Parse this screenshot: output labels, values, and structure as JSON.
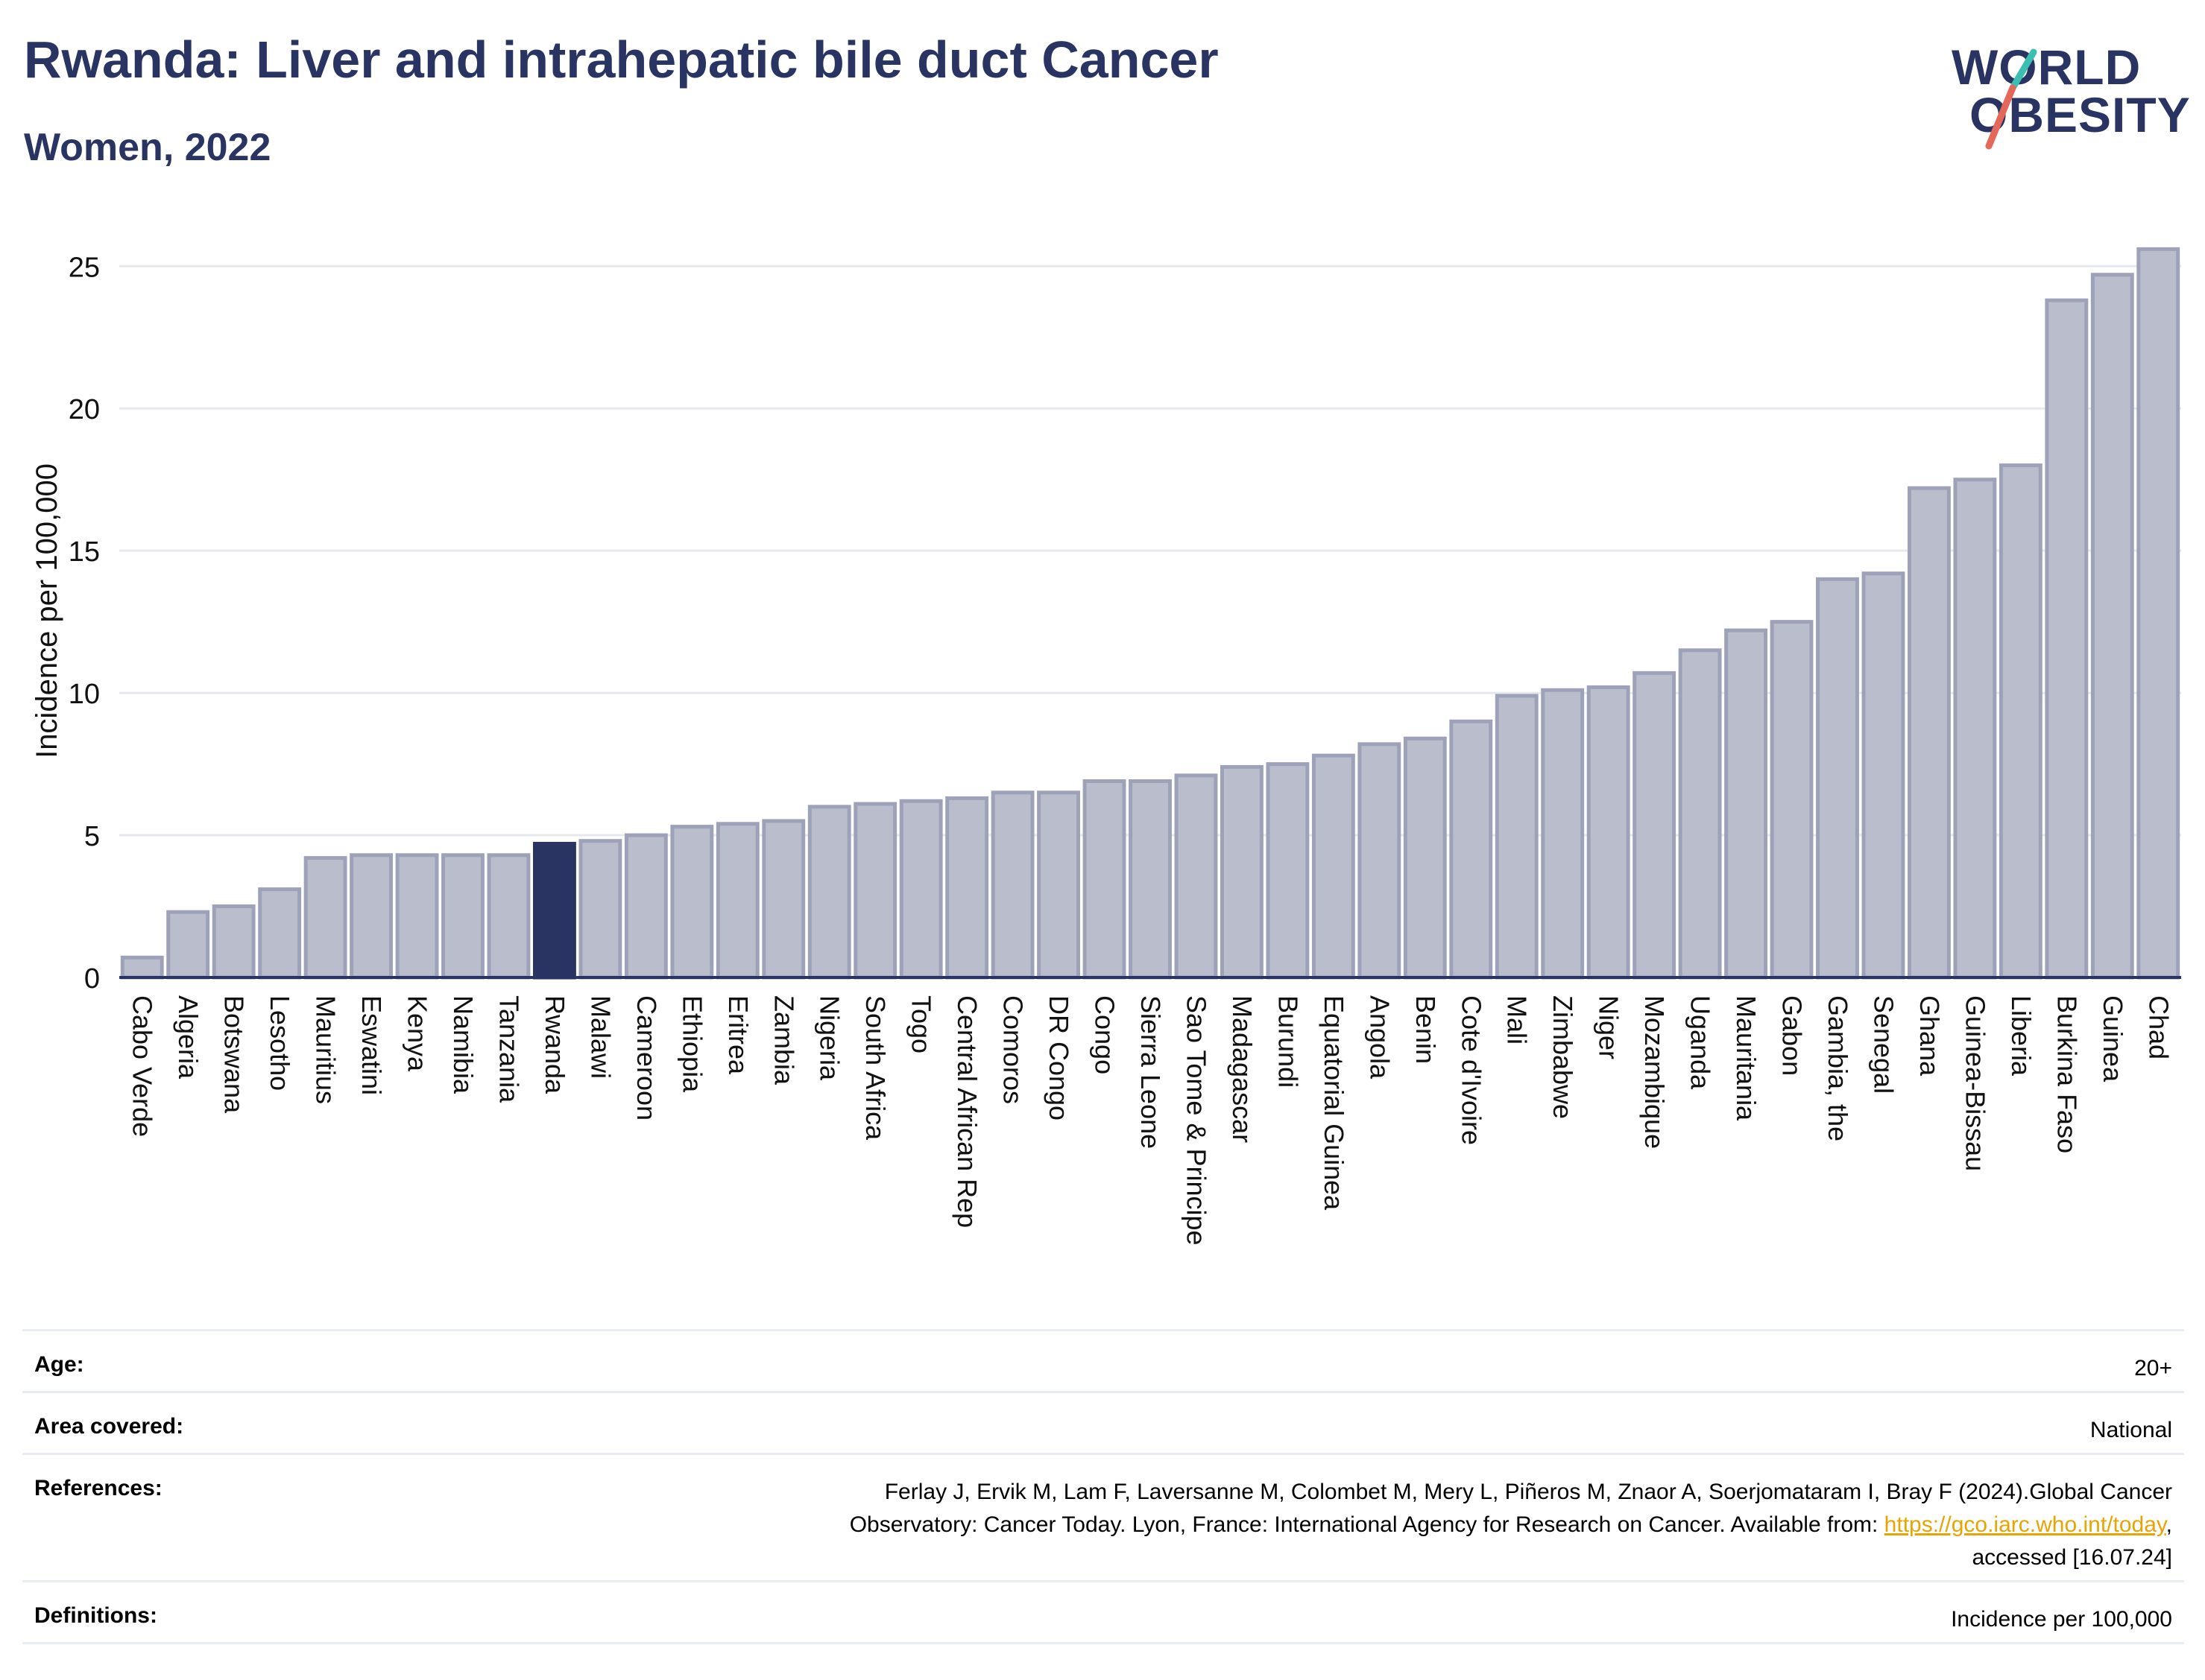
{
  "header": {
    "title": "Rwanda: Liver and intrahepatic bile duct Cancer",
    "subtitle": "Women, 2022"
  },
  "logo": {
    "line1": "WORLD",
    "line2": "OBESITY",
    "accent_colors": [
      "#3bbfb0",
      "#e5675a"
    ]
  },
  "colors": {
    "bar": "#b9bdcc",
    "bar_border": "#9da2b9",
    "highlight": "#2a3462",
    "title": "#2a3462",
    "link": "#e8a400"
  },
  "chart_data": {
    "type": "bar",
    "ylabel": "Incidence per 100,000",
    "ylim": [
      0,
      26.5
    ],
    "yticks": [
      0,
      5,
      10,
      15,
      20,
      25
    ],
    "grid": true,
    "highlight": "Rwanda",
    "categories": [
      "Cabo Verde",
      "Algeria",
      "Botswana",
      "Lesotho",
      "Mauritius",
      "Eswatini",
      "Kenya",
      "Namibia",
      "Tanzania",
      "Rwanda",
      "Malawi",
      "Cameroon",
      "Ethiopia",
      "Eritrea",
      "Zambia",
      "Nigeria",
      "South Africa",
      "Togo",
      "Central African Rep",
      "Comoros",
      "DR Congo",
      "Congo",
      "Sierra Leone",
      "Sao Tome & Principe",
      "Madagascar",
      "Burundi",
      "Equatorial Guinea",
      "Angola",
      "Benin",
      "Cote d'Ivoire",
      "Mali",
      "Zimbabwe",
      "Niger",
      "Mozambique",
      "Uganda",
      "Mauritania",
      "Gabon",
      "Gambia, the",
      "Senegal",
      "Ghana",
      "Guinea-Bissau",
      "Liberia",
      "Burkina Faso",
      "Guinea",
      "Chad"
    ],
    "values": [
      0.7,
      2.3,
      2.5,
      3.1,
      4.2,
      4.3,
      4.3,
      4.3,
      4.3,
      4.7,
      4.8,
      5.0,
      5.3,
      5.4,
      5.5,
      6.0,
      6.1,
      6.2,
      6.3,
      6.5,
      6.5,
      6.9,
      6.9,
      7.1,
      7.4,
      7.5,
      7.8,
      8.2,
      8.4,
      9.0,
      9.9,
      10.1,
      10.2,
      10.7,
      11.5,
      12.2,
      12.5,
      14.0,
      14.2,
      17.2,
      17.5,
      18.0,
      23.8,
      24.7,
      25.6
    ]
  },
  "info": {
    "age_label": "Age:",
    "age_value": "20+",
    "area_label": "Area covered:",
    "area_value": "National",
    "references_label": "References:",
    "references_line1": "Ferlay J, Ervik M, Lam F, Laversanne M, Colombet M, Mery L, Piñeros M, Znaor A, Soerjomataram I, Bray F (2024).Global Cancer",
    "references_line2": "Observatory: Cancer Today. Lyon, France: International Agency for Research on Cancer. Available from: ",
    "references_link": "https://gco.iarc.who.int/today",
    "references_line2_end": ",",
    "references_line3": "accessed [16.07.24]",
    "definitions_label": "Definitions:",
    "definitions_value": "Incidence per 100,000"
  }
}
